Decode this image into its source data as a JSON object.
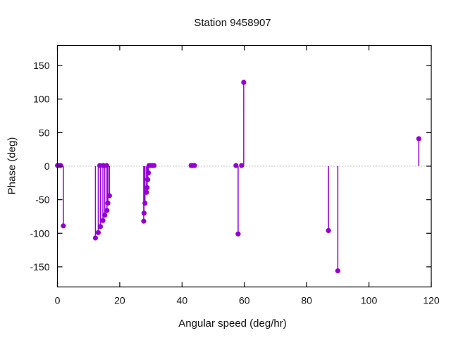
{
  "chart_data": {
    "type": "stem",
    "title": "Station 9458907",
    "xlabel": "Angular speed (deg/hr)",
    "ylabel": "Phase (deg)",
    "xlim": [
      0,
      120
    ],
    "ylim": [
      -180,
      180
    ],
    "xticks": [
      0,
      20,
      40,
      60,
      80,
      100,
      120
    ],
    "yticks": [
      -150,
      -100,
      -50,
      0,
      50,
      100,
      150
    ],
    "grid": false,
    "zero_line": true,
    "legend": "none",
    "series_color": "#9400D3",
    "zero_line_color": "#8a8a8a",
    "points": [
      [
        0.04,
        1
      ],
      [
        0.08,
        1
      ],
      [
        0.54,
        1
      ],
      [
        1.02,
        1
      ],
      [
        1.9,
        -89
      ],
      [
        13.6,
        1
      ],
      [
        14.7,
        1
      ],
      [
        15.8,
        1
      ],
      [
        16.7,
        -44
      ],
      [
        16.2,
        -55
      ],
      [
        15.9,
        -66
      ],
      [
        15.2,
        -73
      ],
      [
        14.6,
        -81
      ],
      [
        13.8,
        -90
      ],
      [
        13.1,
        -99
      ],
      [
        12.2,
        -107
      ],
      [
        29.4,
        1
      ],
      [
        30.0,
        1
      ],
      [
        30.5,
        1
      ],
      [
        31.0,
        1
      ],
      [
        29.2,
        -10
      ],
      [
        29.0,
        -20
      ],
      [
        28.8,
        -32
      ],
      [
        28.6,
        -39
      ],
      [
        28.1,
        -55
      ],
      [
        27.8,
        -70
      ],
      [
        27.7,
        -82
      ],
      [
        42.9,
        1
      ],
      [
        43.5,
        1
      ],
      [
        44.0,
        1
      ],
      [
        57.3,
        1
      ],
      [
        59.1,
        1
      ],
      [
        58.0,
        -101
      ],
      [
        59.8,
        125
      ],
      [
        87.0,
        -96
      ],
      [
        90.0,
        -156
      ],
      [
        116.0,
        41
      ]
    ]
  }
}
